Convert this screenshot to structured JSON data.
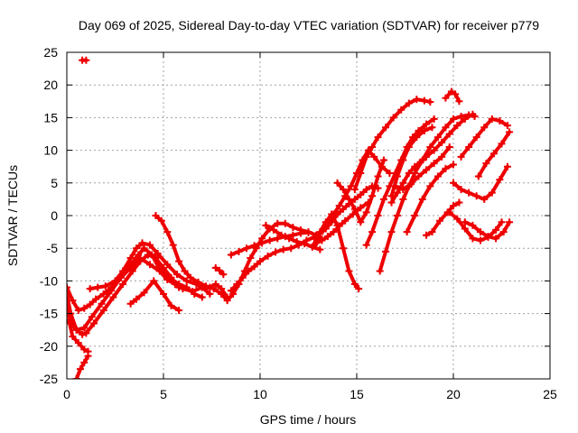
{
  "chart_data": {
    "type": "scatter",
    "title": "Day 069 of 2025, Sidereal Day-to-day VTEC variation (SDTVAR) for receiver p779",
    "xlabel": "GPS time / hours",
    "ylabel": "SDTVAR / TECUs",
    "xlim": [
      0,
      25
    ],
    "ylim": [
      -25,
      25
    ],
    "xticks": [
      "0",
      "5",
      "10",
      "15",
      "20",
      "25"
    ],
    "yticks": [
      "25",
      "20",
      "15",
      "10",
      "5",
      "0",
      "-5",
      "-10",
      "-15",
      "-20",
      "-25"
    ],
    "grid": true,
    "series_color": "#ee0000",
    "series": [
      {
        "x": [
          0.0,
          0.3,
          0.6,
          0.9,
          1.2,
          1.5,
          1.9,
          2.3,
          2.8,
          3.3,
          3.8,
          4.3,
          4.8,
          5.2,
          5.6,
          6.0,
          6.5,
          7.0,
          7.4
        ],
        "y": [
          -11,
          -13,
          -14.5,
          -14.2,
          -13.6,
          -12.8,
          -12,
          -11,
          -9.5,
          -8,
          -6.5,
          -7.5,
          -8.5,
          -9.8,
          -10.5,
          -11.2,
          -11.6,
          -11,
          -12
        ]
      },
      {
        "x": [
          0.0,
          0.2,
          0.5,
          0.9,
          1.3,
          1.8,
          2.3,
          2.8,
          3.3,
          3.7,
          4.0,
          4.4,
          4.8,
          5.3,
          5.8,
          6.2,
          6.6,
          7.0
        ],
        "y": [
          -14,
          -16.5,
          -17.5,
          -17.2,
          -15.5,
          -13.5,
          -11.5,
          -9.5,
          -7.5,
          -6,
          -5,
          -6,
          -8.2,
          -9.5,
          -10.5,
          -11,
          -12,
          -12.5
        ]
      },
      {
        "x": [
          0.0,
          0.2,
          0.5,
          0.8,
          1.0,
          1.4,
          1.9,
          2.4,
          2.9,
          3.4,
          3.8,
          4.2,
          4.6,
          5.0,
          5.4,
          5.8
        ],
        "y": [
          -12,
          -15,
          -17.5,
          -18.2,
          -18,
          -16.5,
          -14.5,
          -12.5,
          -10.5,
          -8.5,
          -7,
          -6,
          -6.5,
          -8,
          -9.5,
          -11
        ]
      },
      {
        "x": [
          0.1,
          0.3,
          0.6,
          0.9,
          1.1
        ],
        "y": [
          -16,
          -18.5,
          -19.5,
          -20.5,
          -20.8
        ]
      },
      {
        "x": [
          0.5,
          0.7,
          0.9,
          1.1
        ],
        "y": [
          -25,
          -23.5,
          -22.5,
          -21.5
        ]
      },
      {
        "x": [
          0.8,
          1.0
        ],
        "y": [
          23.8,
          23.8
        ]
      },
      {
        "x": [
          1.2,
          1.6,
          2.0,
          2.5,
          2.9,
          3.3,
          3.6,
          3.9,
          4.3,
          4.7,
          5.2,
          5.7,
          6.2,
          6.7,
          7.2
        ],
        "y": [
          -11.2,
          -11,
          -10.8,
          -10,
          -8.5,
          -6.5,
          -5,
          -4.2,
          -4.5,
          -5.8,
          -7.5,
          -9,
          -10,
          -10.5,
          -11.2
        ]
      },
      {
        "x": [
          3.3,
          3.6,
          4.0,
          4.5,
          5.0,
          5.4,
          5.8
        ],
        "y": [
          -13.5,
          -12.8,
          -11.8,
          -10,
          -12,
          -13.8,
          -14.5
        ]
      },
      {
        "x": [
          4.6,
          4.9,
          5.2,
          5.5,
          5.8,
          6.1,
          6.4,
          6.8,
          7.2,
          7.6,
          8.0,
          8.3
        ],
        "y": [
          0,
          -0.8,
          -2.5,
          -4.5,
          -7,
          -8.5,
          -9.5,
          -10.2,
          -10.8,
          -11.2,
          -12,
          -12.5
        ]
      },
      {
        "x": [
          7.4,
          7.7,
          8.0,
          8.3
        ],
        "y": [
          -11,
          -10.5,
          -11.2,
          -12.5
        ]
      },
      {
        "x": [
          7.7,
          7.9,
          8.1
        ],
        "y": [
          -8,
          -8.4,
          -9
        ]
      },
      {
        "x": [
          8.0,
          8.3,
          8.6,
          8.9,
          9.2,
          9.5,
          9.8,
          10.1,
          10.5,
          10.9,
          11.3,
          11.7,
          12.1,
          12.5,
          12.9,
          13.2
        ],
        "y": [
          -12,
          -13,
          -12,
          -10.5,
          -8.5,
          -6.5,
          -5,
          -3.5,
          -2,
          -1.2,
          -1.2,
          -1.8,
          -2.2,
          -2.5,
          -3,
          -3.6
        ]
      },
      {
        "x": [
          8.5,
          8.8,
          9.1,
          9.4,
          9.7,
          10.0,
          10.4,
          10.8,
          11.2,
          11.6,
          12.0,
          12.4,
          12.8
        ],
        "y": [
          -11.5,
          -10.5,
          -9.5,
          -8.5,
          -7.8,
          -7,
          -6.2,
          -5.6,
          -5.2,
          -5,
          -4.5,
          -3.8,
          -3.3
        ]
      },
      {
        "x": [
          8.5,
          8.9,
          9.3,
          9.7,
          10.1,
          10.5,
          10.9,
          11.3,
          11.7,
          12.1,
          12.5
        ],
        "y": [
          -6,
          -5.5,
          -5,
          -4.6,
          -4.2,
          -3.8,
          -3.5,
          -3.2,
          -3,
          -2.7,
          -2.6
        ]
      },
      {
        "x": [
          10.3,
          10.7,
          11.1,
          11.5,
          11.9,
          12.3,
          12.7,
          13.1
        ],
        "y": [
          -1.5,
          -2.2,
          -3,
          -3.5,
          -4,
          -4.3,
          -4.8,
          -5.2
        ]
      },
      {
        "x": [
          12.8,
          13.1,
          13.4,
          13.7,
          14.0,
          14.3,
          14.6,
          14.9,
          15.1
        ],
        "y": [
          -4.5,
          -2.5,
          -1,
          0.2,
          -1.5,
          -5,
          -8.5,
          -10.5,
          -11.2
        ]
      },
      {
        "x": [
          12.8,
          13.1,
          13.4,
          13.7,
          14.0,
          14.3,
          14.6,
          14.9,
          15.2,
          15.5,
          15.8,
          16.1
        ],
        "y": [
          -3.5,
          -2.8,
          -2,
          -1,
          0.2,
          1,
          1.8,
          2.5,
          3.2,
          4,
          4.5,
          4.2
        ]
      },
      {
        "x": [
          12.9,
          13.2,
          13.5,
          13.8,
          14.1,
          14.4,
          14.8,
          15.2,
          15.6
        ],
        "y": [
          -4.2,
          -3.8,
          -3.2,
          -2.5,
          -1.6,
          -0.8,
          0.2,
          1.2,
          2
        ]
      },
      {
        "x": [
          13.5,
          13.8,
          14.1,
          14.4,
          14.7,
          15.0,
          15.3,
          15.6,
          15.9,
          16.3,
          16.7
        ],
        "y": [
          -1,
          0.2,
          1.5,
          3,
          4.5,
          6.5,
          8.5,
          10,
          9,
          7.5,
          6.5
        ]
      },
      {
        "x": [
          14.0,
          14.3,
          14.6,
          14.9,
          15.2,
          15.5,
          15.8,
          16.1,
          16.4
        ],
        "y": [
          5,
          4,
          2.5,
          1,
          -1,
          0.5,
          3,
          6,
          8.5
        ]
      },
      {
        "x": [
          14.9,
          15.2,
          15.5,
          15.8,
          16.1,
          16.5,
          16.9,
          17.3,
          17.7,
          18.1,
          18.5,
          18.8
        ],
        "y": [
          4,
          6.5,
          9,
          10.5,
          12,
          13.5,
          15,
          16.2,
          17.2,
          17.8,
          17.6,
          17.4
        ]
      },
      {
        "x": [
          15.5,
          15.8,
          16.1,
          16.4,
          16.7,
          17.0,
          17.3,
          17.6,
          17.9,
          18.2,
          18.6,
          19.0
        ],
        "y": [
          -4.5,
          -2.5,
          0,
          2.5,
          4.5,
          6.5,
          8.5,
          10.5,
          12,
          13,
          14,
          14.8
        ]
      },
      {
        "x": [
          16.2,
          16.5,
          16.8,
          17.1,
          17.4,
          17.7,
          18.0,
          18.4,
          18.8,
          19.2,
          19.6,
          20.0,
          20.4,
          20.8,
          21.1
        ],
        "y": [
          -8.5,
          -5.5,
          -2.5,
          0,
          2.5,
          4.5,
          6.5,
          8.5,
          10.5,
          12,
          13.5,
          14.8,
          15.2,
          15.4,
          15.2
        ]
      },
      {
        "x": [
          16.8,
          17.1,
          17.4,
          17.7,
          18.0,
          18.3,
          18.6,
          19.0,
          19.4,
          19.8,
          20.2,
          20.6,
          21.0
        ],
        "y": [
          2,
          3.5,
          5,
          6.5,
          7.5,
          8.2,
          9,
          10,
          11.2,
          12.5,
          13.8,
          14.8,
          15.5
        ]
      },
      {
        "x": [
          16.8,
          17.1,
          17.4,
          17.7,
          18.1,
          18.5,
          18.9
        ],
        "y": [
          3,
          6,
          8.5,
          10.5,
          12,
          13,
          13.5
        ]
      },
      {
        "x": [
          17.0,
          17.4,
          17.8,
          18.2,
          18.6,
          19.0,
          19.4,
          19.8
        ],
        "y": [
          4.5,
          4,
          4.8,
          6,
          7,
          8,
          9,
          10.5
        ]
      },
      {
        "x": [
          17.6,
          18.0,
          18.4,
          18.8,
          19.2,
          19.6,
          20.0
        ],
        "y": [
          -2.5,
          0,
          2.5,
          4.5,
          6,
          7.2,
          7.8
        ]
      },
      {
        "x": [
          18.6,
          18.9,
          19.3,
          19.7,
          20.0,
          20.3
        ],
        "y": [
          -3,
          -2.5,
          -0.8,
          0.5,
          1.5,
          2
        ]
      },
      {
        "x": [
          19.6,
          19.9,
          20.1,
          20.3
        ],
        "y": [
          18,
          19,
          18.6,
          17.5
        ]
      },
      {
        "x": [
          19.8,
          20.2,
          20.6,
          21.0,
          21.4,
          21.8,
          22.2,
          22.5
        ],
        "y": [
          0.5,
          -0.5,
          -2,
          -3.5,
          -3.8,
          -3.3,
          -2.2,
          -1
        ]
      },
      {
        "x": [
          20.0,
          20.4,
          20.8,
          21.2,
          21.6,
          22.0,
          22.4,
          22.8
        ],
        "y": [
          5,
          4,
          3.5,
          3,
          2.5,
          3.5,
          5.5,
          7.5
        ]
      },
      {
        "x": [
          20.6,
          21.0,
          21.4,
          21.8,
          22.2,
          22.6,
          22.9
        ],
        "y": [
          -1,
          -1.5,
          -2.5,
          -3.2,
          -3.5,
          -2.5,
          -1
        ]
      },
      {
        "x": [
          20.4,
          20.8,
          21.2,
          21.6,
          22.0,
          22.4,
          22.8
        ],
        "y": [
          9,
          10.5,
          12,
          13.5,
          14.8,
          14.5,
          13.8
        ]
      },
      {
        "x": [
          21.3,
          21.7,
          22.1,
          22.5,
          22.9
        ],
        "y": [
          6,
          8,
          9.5,
          11,
          12.8
        ]
      }
    ]
  }
}
